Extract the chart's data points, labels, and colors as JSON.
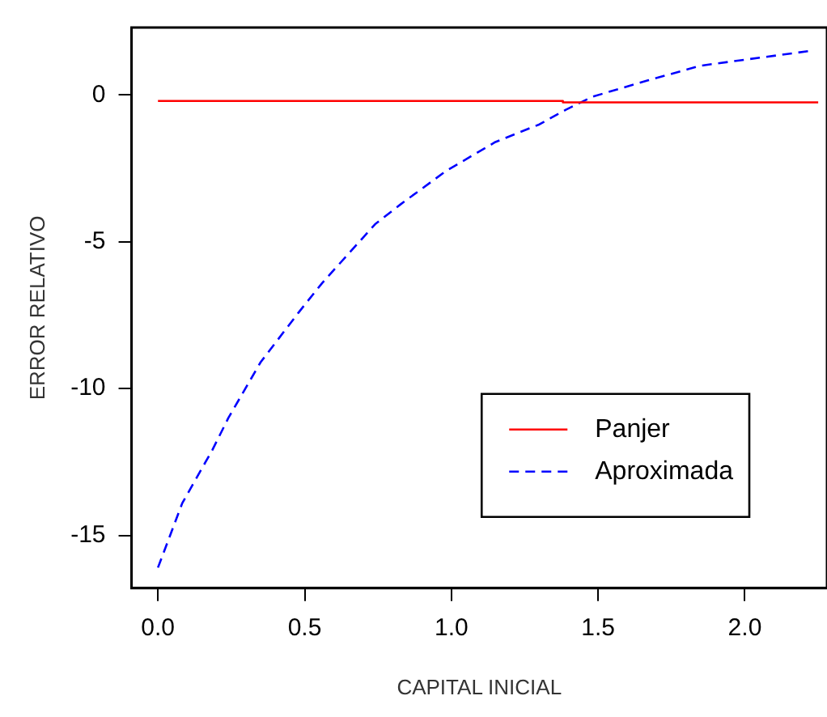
{
  "chart_data": {
    "type": "line",
    "xlabel": "CAPITAL INICIAL",
    "ylabel": "ERROR RELATIVO",
    "xlim": [
      -0.09,
      2.28
    ],
    "ylim": [
      -16.8,
      2.3
    ],
    "xticks": [
      {
        "value": 0,
        "label": "0.0"
      },
      0.5,
      {
        "value": 1,
        "label": "1.0"
      },
      1.5,
      {
        "value": 2,
        "label": "2.0"
      }
    ],
    "yticks": [
      -15,
      -10,
      -5,
      0
    ],
    "grid": false,
    "legend": "bottom right",
    "marker": "none",
    "series": [
      {
        "name": "Panjer",
        "color": "#ff0000",
        "line_style": "solid",
        "x": [
          0,
          1.38,
          1.38,
          2.25
        ],
        "values": [
          -0.2,
          -0.2,
          -0.25,
          -0.25
        ]
      },
      {
        "name": "Aproximada",
        "color": "#0000ff",
        "line_style": "dashed",
        "x": [
          0,
          0.083,
          0.185,
          0.24,
          0.35,
          0.48,
          0.56,
          0.74,
          0.83,
          0.98,
          1.15,
          1.3,
          1.39,
          1.48,
          1.67,
          1.85,
          1.96,
          2.22
        ],
        "values": [
          -16.1,
          -13.9,
          -12.1,
          -11.0,
          -9.1,
          -7.4,
          -6.4,
          -4.4,
          -3.7,
          -2.6,
          -1.6,
          -1.0,
          -0.5,
          -0.06,
          0.5,
          1.0,
          1.15,
          1.5
        ]
      }
    ]
  }
}
